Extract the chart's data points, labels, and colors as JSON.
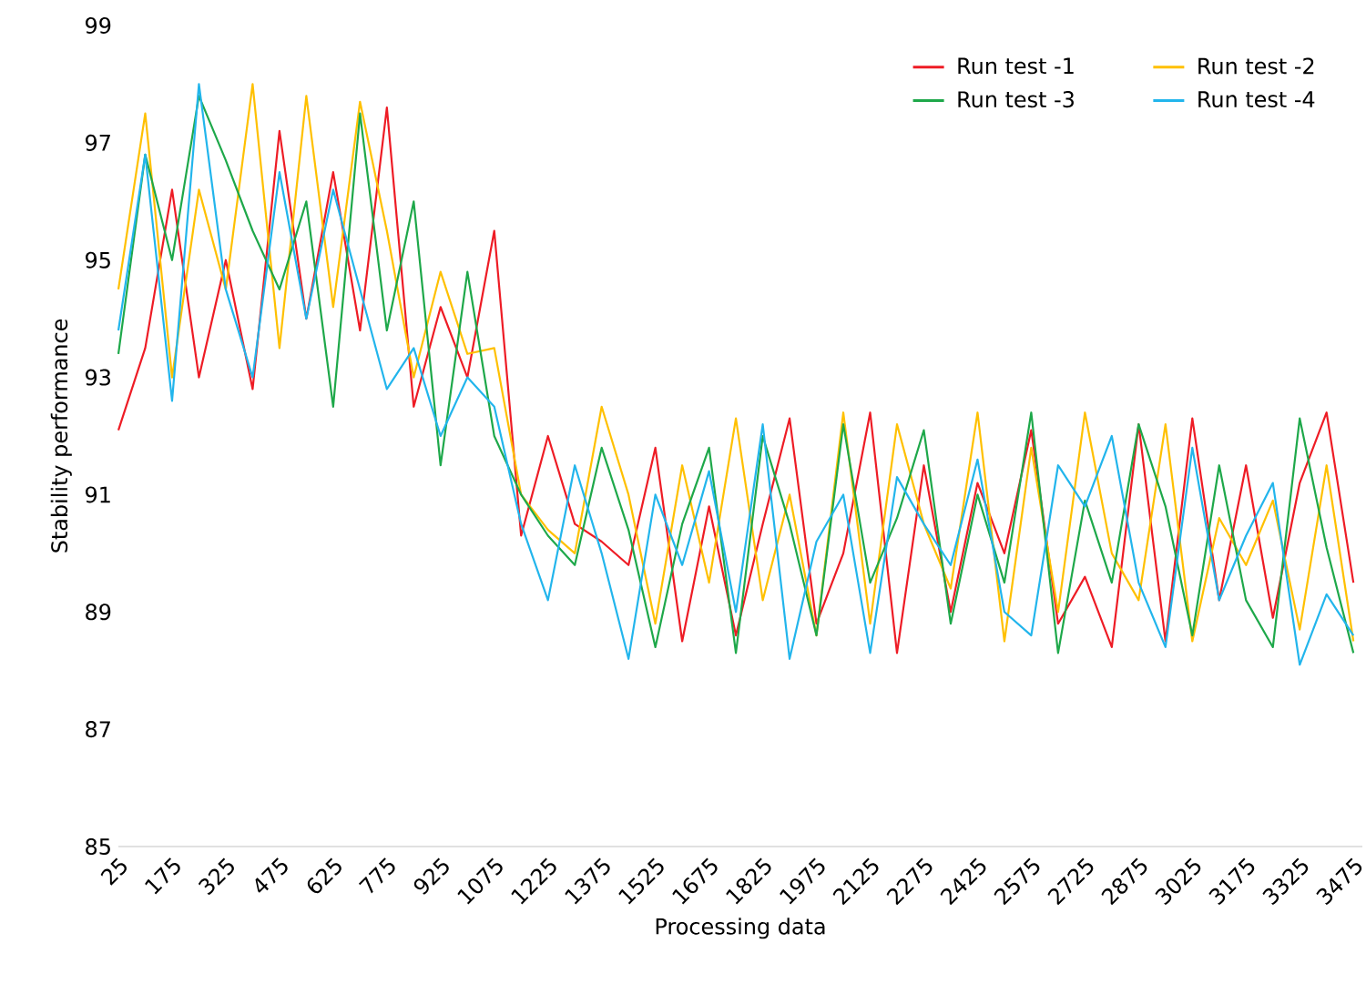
{
  "chart_data": {
    "type": "line",
    "xlabel": "Processing data",
    "ylabel": "Stability performance",
    "x": [
      25,
      100,
      175,
      250,
      325,
      400,
      475,
      550,
      625,
      700,
      775,
      850,
      925,
      1000,
      1075,
      1150,
      1225,
      1300,
      1375,
      1450,
      1525,
      1600,
      1675,
      1750,
      1825,
      1900,
      1975,
      2050,
      2125,
      2200,
      2275,
      2350,
      2425,
      2500,
      2575,
      2650,
      2725,
      2800,
      2875,
      2950,
      3025,
      3100,
      3175,
      3250,
      3325,
      3400,
      3475
    ],
    "series": [
      {
        "name": "Run test -1",
        "color": "#ee1c25",
        "values": [
          92.1,
          93.5,
          96.2,
          93.0,
          95.0,
          92.8,
          97.2,
          94.0,
          96.5,
          93.8,
          97.6,
          92.5,
          94.2,
          93.0,
          95.5,
          90.3,
          92.0,
          90.5,
          90.2,
          89.8,
          91.8,
          88.5,
          90.8,
          88.6,
          90.5,
          92.3,
          88.8,
          90.0,
          92.4,
          88.3,
          91.5,
          89.0,
          91.2,
          90.0,
          92.1,
          88.8,
          89.6,
          88.4,
          92.2,
          88.5,
          92.3,
          89.2,
          91.5,
          88.9,
          91.2,
          92.4,
          89.5
        ]
      },
      {
        "name": "Run test -2",
        "color": "#ffc000",
        "values": [
          94.5,
          97.5,
          93.0,
          96.2,
          94.5,
          98.0,
          93.5,
          97.8,
          94.2,
          97.7,
          95.5,
          93.0,
          94.8,
          93.4,
          93.5,
          91.0,
          90.4,
          90.0,
          92.5,
          91.0,
          88.8,
          91.5,
          89.5,
          92.3,
          89.2,
          91.0,
          88.6,
          92.4,
          88.8,
          92.2,
          90.5,
          89.4,
          92.4,
          88.5,
          91.8,
          89.0,
          92.4,
          90.0,
          89.2,
          92.2,
          88.5,
          90.6,
          89.8,
          90.9,
          88.7,
          91.5,
          88.5
        ]
      },
      {
        "name": "Run test -3",
        "color": "#1ea84a",
        "values": [
          93.4,
          96.8,
          95.0,
          97.8,
          96.7,
          95.5,
          94.5,
          96.0,
          92.5,
          97.5,
          93.8,
          96.0,
          91.5,
          94.8,
          92.0,
          91.0,
          90.3,
          89.8,
          91.8,
          90.4,
          88.4,
          90.5,
          91.8,
          88.3,
          92.0,
          90.5,
          88.6,
          92.2,
          89.5,
          90.6,
          92.1,
          88.8,
          91.0,
          89.5,
          92.4,
          88.3,
          90.9,
          89.5,
          92.2,
          90.8,
          88.6,
          91.5,
          89.2,
          88.4,
          92.3,
          90.1,
          88.3
        ]
      },
      {
        "name": "Run test -4",
        "color": "#22b5ec",
        "values": [
          93.8,
          96.8,
          92.6,
          98.0,
          94.5,
          93.0,
          96.5,
          94.0,
          96.2,
          94.5,
          92.8,
          93.5,
          92.0,
          93.0,
          92.5,
          90.5,
          89.2,
          91.5,
          90.0,
          88.2,
          91.0,
          89.8,
          91.4,
          89.0,
          92.2,
          88.2,
          90.2,
          91.0,
          88.3,
          91.3,
          90.5,
          89.8,
          91.6,
          89.0,
          88.6,
          91.5,
          90.8,
          92.0,
          89.5,
          88.4,
          91.8,
          89.2,
          90.3,
          91.2,
          88.1,
          89.3,
          88.6
        ]
      }
    ],
    "xlim": [
      25,
      3500
    ],
    "xticks": [
      25,
      175,
      325,
      475,
      625,
      775,
      925,
      1075,
      1225,
      1375,
      1525,
      1675,
      1825,
      1975,
      2125,
      2275,
      2425,
      2575,
      2725,
      2875,
      3025,
      3175,
      3325,
      3475
    ],
    "ylim": [
      85,
      99
    ],
    "yticks": [
      85,
      87,
      89,
      91,
      93,
      95,
      97,
      99
    ],
    "legend": "top right",
    "marker": "none",
    "line_style": "solid",
    "grid": false
  }
}
